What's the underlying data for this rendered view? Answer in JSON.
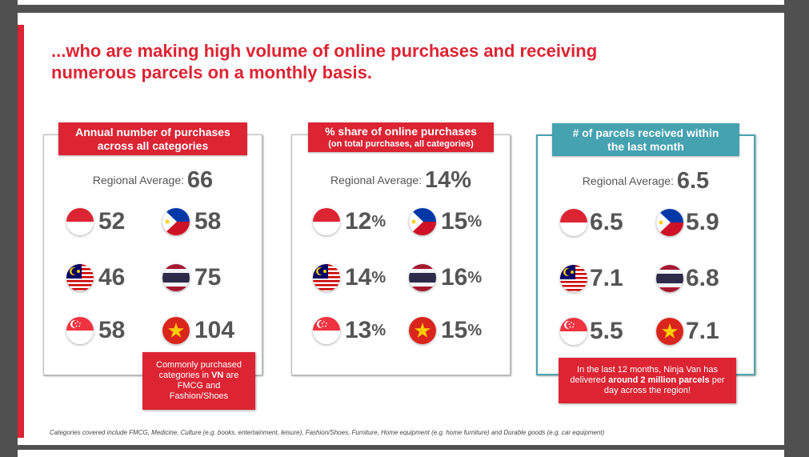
{
  "headline": {
    "line1": "...who are making high volume of online purchases and receiving",
    "line2": "numerous parcels on a monthly basis."
  },
  "colors": {
    "accent": "#dc2433",
    "teal": "#45a2b1",
    "value_text": "#555555"
  },
  "cards": [
    {
      "title_line1": "Annual number of purchases",
      "title_line2": "across all categories",
      "avg_label": "Regional Average: ",
      "avg_value": "66",
      "unit": "",
      "items": [
        {
          "flag": "indonesia-flag-icon",
          "value": "52"
        },
        {
          "flag": "philippines-flag-icon",
          "value": "58"
        },
        {
          "flag": "malaysia-flag-icon",
          "value": "46"
        },
        {
          "flag": "thailand-flag-icon",
          "value": "75"
        },
        {
          "flag": "singapore-flag-icon",
          "value": "58"
        },
        {
          "flag": "vietnam-flag-icon",
          "value": "104"
        }
      ]
    },
    {
      "title_line1": "% share of online purchases",
      "title_line2": "(on total purchases, all categories)",
      "avg_label": "Regional Average: ",
      "avg_value": "14%",
      "unit": "%",
      "items": [
        {
          "flag": "indonesia-flag-icon",
          "value": "12"
        },
        {
          "flag": "philippines-flag-icon",
          "value": "15"
        },
        {
          "flag": "malaysia-flag-icon",
          "value": "14"
        },
        {
          "flag": "thailand-flag-icon",
          "value": "16"
        },
        {
          "flag": "singapore-flag-icon",
          "value": "13"
        },
        {
          "flag": "vietnam-flag-icon",
          "value": "15"
        }
      ]
    },
    {
      "title_line1": "# of parcels received within",
      "title_line2": "the last month",
      "avg_label": "Regional Average: ",
      "avg_value": "6.5",
      "unit": "",
      "items": [
        {
          "flag": "indonesia-flag-icon",
          "value": "6.5"
        },
        {
          "flag": "philippines-flag-icon",
          "value": "5.9"
        },
        {
          "flag": "malaysia-flag-icon",
          "value": "7.1"
        },
        {
          "flag": "thailand-flag-icon",
          "value": "6.8"
        },
        {
          "flag": "singapore-flag-icon",
          "value": "5.5"
        },
        {
          "flag": "vietnam-flag-icon",
          "value": "7.1"
        }
      ]
    }
  ],
  "notes": {
    "vn": {
      "pre": "Commonly purchased categories in ",
      "bold": "VN",
      "post": " are FMCG and Fashion/Shoes"
    },
    "ninja": {
      "pre": "In the last 12 months, Ninja Van has delivered ",
      "bold": "around 2 million parcels",
      "post": " per day across the region!"
    }
  },
  "footnote": "Categories covered include FMCG, Medicine, Culture (e.g. books, entertainment, leisure), Fashion/Shoes, Furniture, Home equipment (e.g. home furniture) and Durable goods (e.g. car equipment)"
}
